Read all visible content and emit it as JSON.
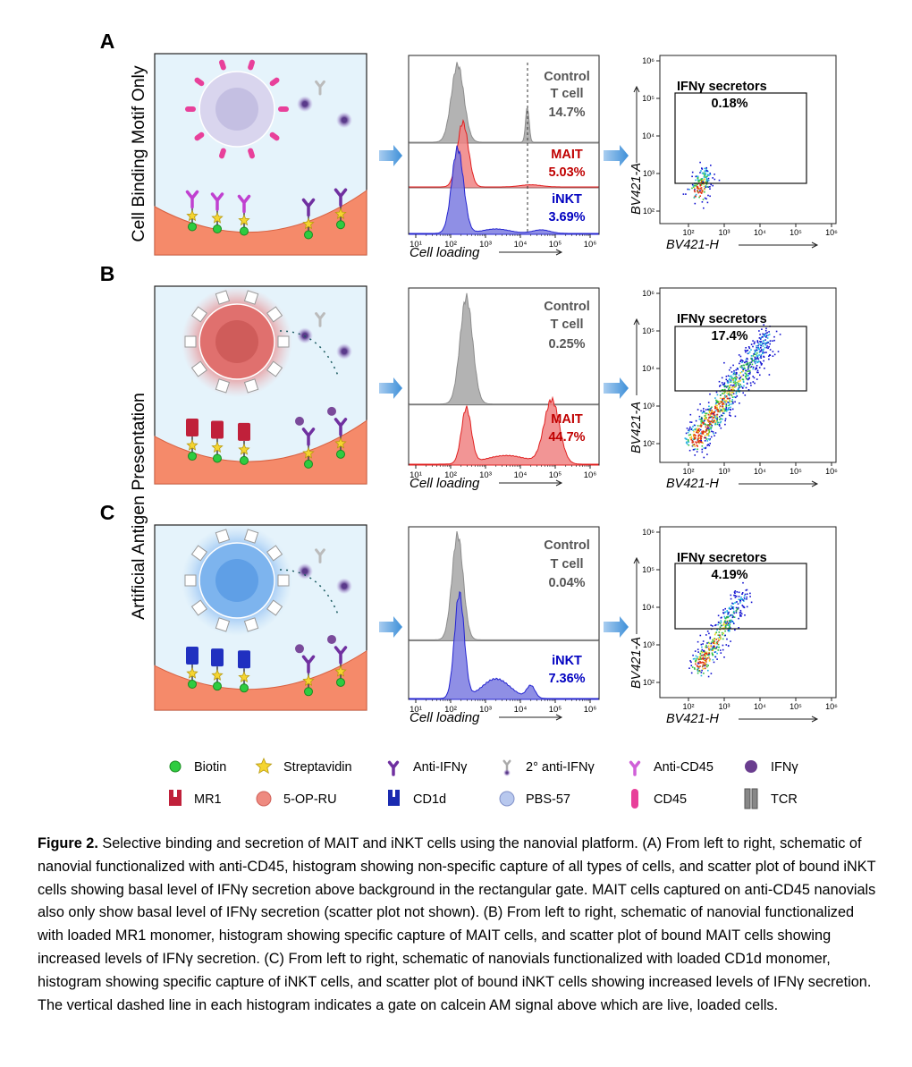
{
  "side_labels": [
    "Cell Binding Motif Only",
    "Artificial Antigen Presentation"
  ],
  "panels": [
    {
      "letter": "A",
      "histogram": {
        "populations": [
          {
            "name": [
              "Control",
              "T cell"
            ],
            "percent": "14.7%"
          },
          {
            "name": [
              "MAIT"
            ],
            "percent": "5.03%"
          },
          {
            "name": [
              "iNKT"
            ],
            "percent": "3.69%"
          }
        ],
        "xticks": [
          "10¹",
          "10²",
          "10³",
          "10⁴",
          "10⁵",
          "10⁶"
        ],
        "xlabel": "Cell loading"
      },
      "scatter": {
        "gate_label": "IFNγ secretors",
        "gate_percent": "0.18%",
        "xticks": [
          "10²",
          "10³",
          "10⁴",
          "10⁵",
          "10⁶"
        ],
        "yticks": [
          "10⁶",
          "10⁵",
          "10⁴",
          "10³",
          "10²"
        ],
        "xlabel": "BV421-H",
        "ylabel": "BV421-A"
      }
    },
    {
      "letter": "B",
      "histogram": {
        "populations": [
          {
            "name": [
              "Control",
              "T cell"
            ],
            "percent": "0.25%"
          },
          {
            "name": [
              "MAIT"
            ],
            "percent": "44.7%"
          }
        ],
        "xticks": [
          "10¹",
          "10²",
          "10³",
          "10⁴",
          "10⁵",
          "10⁶"
        ],
        "xlabel": "Cell loading"
      },
      "scatter": {
        "gate_label": "IFNγ secretors",
        "gate_percent": "17.4%",
        "xticks": [
          "10²",
          "10³",
          "10⁴",
          "10⁵",
          "10⁶"
        ],
        "yticks": [
          "10⁶",
          "10⁵",
          "10⁴",
          "10³",
          "10²"
        ],
        "xlabel": "BV421-H",
        "ylabel": "BV421-A"
      }
    },
    {
      "letter": "C",
      "histogram": {
        "populations": [
          {
            "name": [
              "Control",
              "T cell"
            ],
            "percent": "0.04%"
          },
          {
            "name": [
              "iNKT"
            ],
            "percent": "7.36%"
          }
        ],
        "xticks": [
          "10¹",
          "10²",
          "10³",
          "10⁴",
          "10⁵",
          "10⁶"
        ],
        "xlabel": "Cell loading"
      },
      "scatter": {
        "gate_label": "IFNγ secretors",
        "gate_percent": "4.19%",
        "xticks": [
          "10²",
          "10³",
          "10⁴",
          "10⁵",
          "10⁶"
        ],
        "yticks": [
          "10⁶",
          "10⁵",
          "10⁴",
          "10³",
          "10²"
        ],
        "xlabel": "BV421-H",
        "ylabel": "BV421-A"
      }
    }
  ],
  "legend": [
    "Biotin",
    "Streptavidin",
    "Anti-IFNγ",
    "2° anti-IFNγ",
    "Anti-CD45",
    "IFNγ",
    "MR1",
    "5-OP-RU",
    "CD1d",
    "PBS-57",
    "CD45",
    "TCR"
  ],
  "caption": {
    "label": "Figure 2.",
    "text": " Selective binding and secretion of MAIT and iNKT cells using the nanovial platform. (A) From left to right, schematic of nanovial functionalized with anti-CD45, histogram showing non-specific capture of all types of cells, and scatter plot of bound iNKT cells showing basal level of IFNγ secretion above background in the rectangular gate. MAIT cells captured on anti-CD45 nanovials also only show basal level of IFNγ secretion (scatter plot not shown).  (B) From left to right, schematic of nanovial functionalized with loaded MR1 monomer, histogram showing specific capture of MAIT cells, and scatter plot of bound MAIT cells showing increased levels of IFNγ secretion. (C) From left to right, schematic of nanovials functionalized with loaded CD1d monomer, histogram showing specific capture of iNKT cells, and scatter plot of bound iNKT cells showing increased levels of IFNγ secretion. The vertical dashed line in each histogram indicates a gate on calcein AM signal above which are live, loaded cells."
  }
}
